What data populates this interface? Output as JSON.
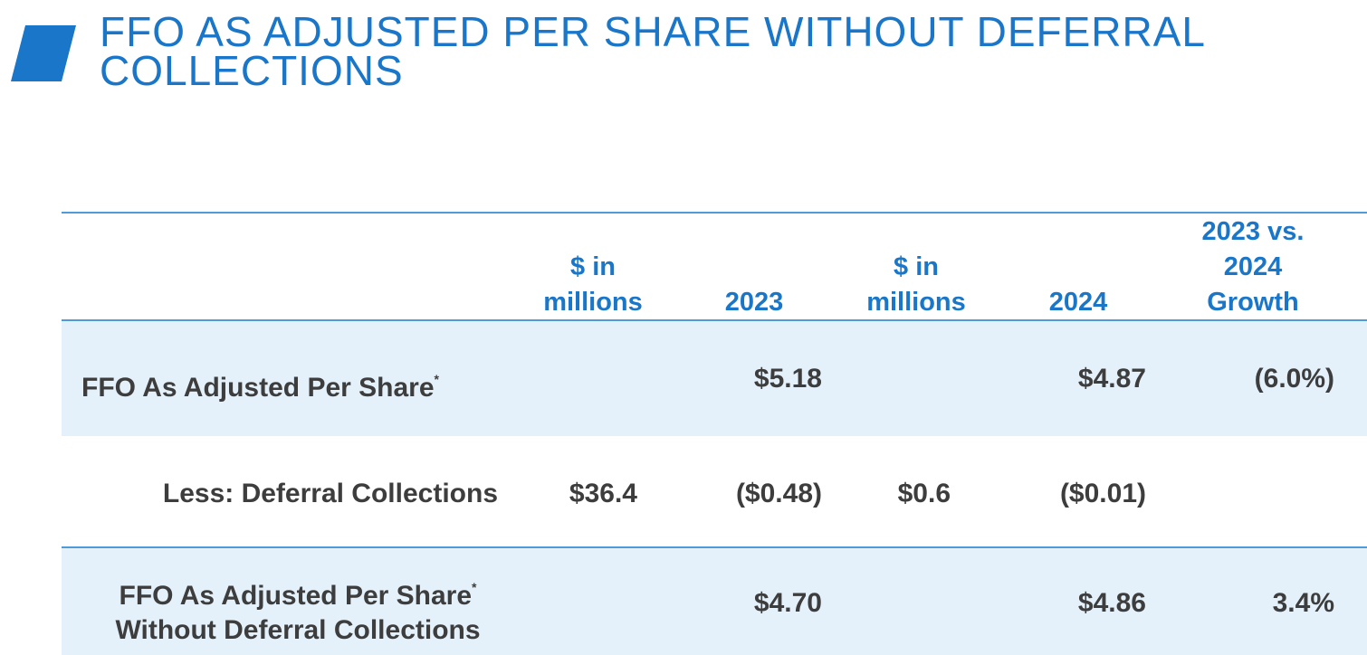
{
  "title": "FFO AS ADJUSTED PER SHARE WITHOUT DEFERRAL COLLECTIONS",
  "colors": {
    "accent": "#1a76c9",
    "band": "#e4f1fb",
    "rule": "#4f9ad8",
    "text": "#3d3d3d"
  },
  "table": {
    "headers": [
      {
        "line1": "",
        "line2": "$ in",
        "line3": "millions"
      },
      {
        "line1": "",
        "line2": "",
        "line3": "2023"
      },
      {
        "line1": "",
        "line2": "$ in",
        "line3": "millions"
      },
      {
        "line1": "",
        "line2": "",
        "line3": "2024"
      },
      {
        "line1": "2023 vs.",
        "line2": "2024",
        "line3": "Growth"
      }
    ],
    "rows": [
      {
        "label_line1": "FFO As Adjusted Per Share",
        "label_line2": "",
        "footnote_mark": "*",
        "millions_2023": "",
        "value_2023": "$5.18",
        "millions_2024": "",
        "value_2024": "$4.87",
        "growth": "(6.0%)"
      },
      {
        "label_line1": "Less: Deferral Collections",
        "label_line2": "",
        "footnote_mark": "",
        "millions_2023": "$36.4",
        "value_2023": "($0.48)",
        "millions_2024": "$0.6",
        "value_2024": "($0.01)",
        "growth": ""
      },
      {
        "label_line1": "FFO As Adjusted Per Share",
        "label_line2": "Without Deferral Collections",
        "footnote_mark": "*",
        "millions_2023": "",
        "value_2023": "$4.70",
        "millions_2024": "",
        "value_2024": "$4.86",
        "growth": "3.4%"
      }
    ]
  }
}
